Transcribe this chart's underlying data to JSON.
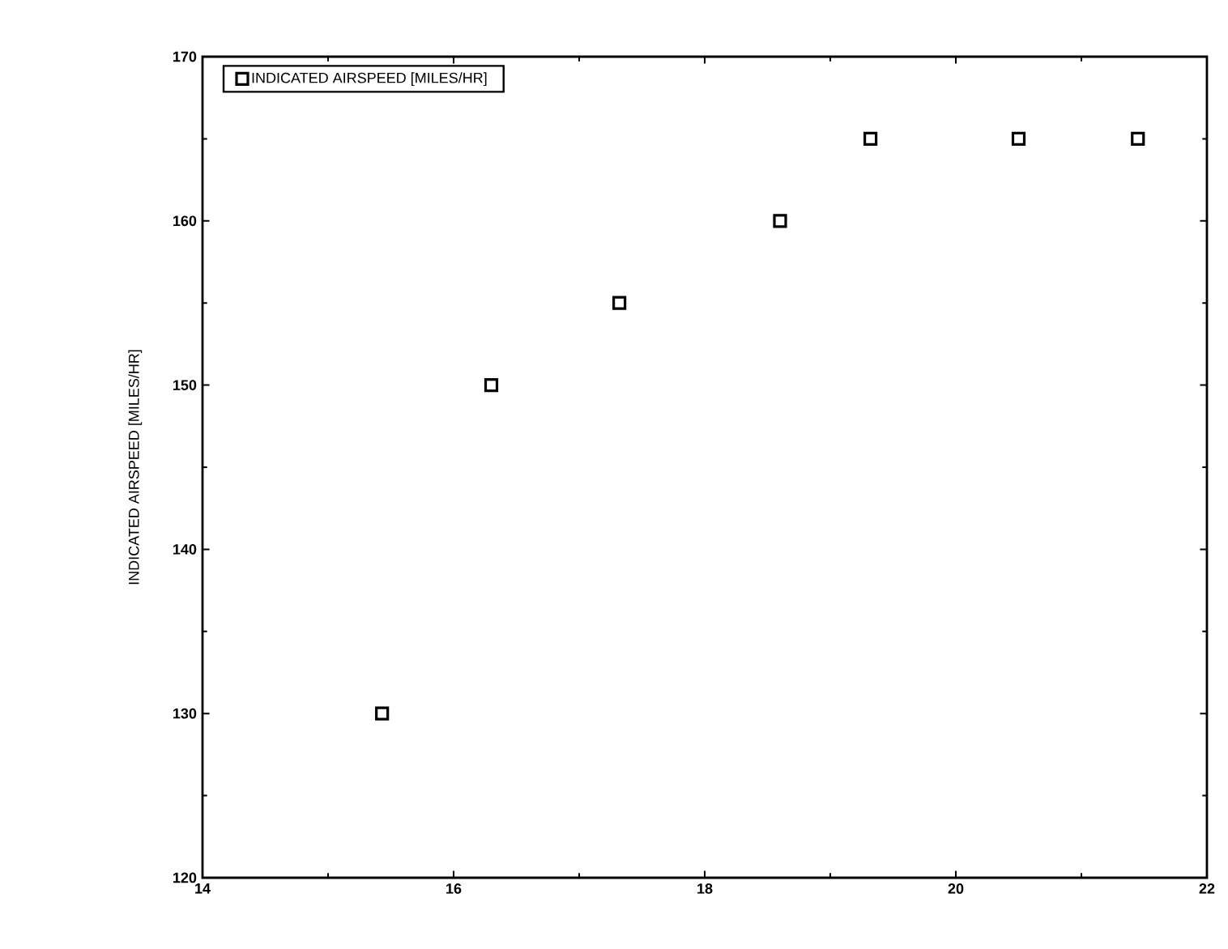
{
  "chart_data": {
    "type": "scatter",
    "ylabel": "INDICATED AIRSPEED [MILES/HR]",
    "x": [
      15.43,
      16.3,
      17.32,
      18.6,
      19.32,
      20.5,
      21.45
    ],
    "series": [
      {
        "name": "INDICATED AIRSPEED [MILES/HR]",
        "color": "#000000",
        "values": [
          130,
          150,
          155,
          160,
          165,
          165,
          165
        ]
      }
    ],
    "xlim": [
      14,
      22
    ],
    "xticks": [
      14,
      16,
      18,
      20,
      22
    ],
    "ylim": [
      120,
      170
    ],
    "yticks": [
      120,
      130,
      140,
      150,
      160,
      170
    ],
    "marker": "square",
    "legend": "top left",
    "grid": false
  }
}
